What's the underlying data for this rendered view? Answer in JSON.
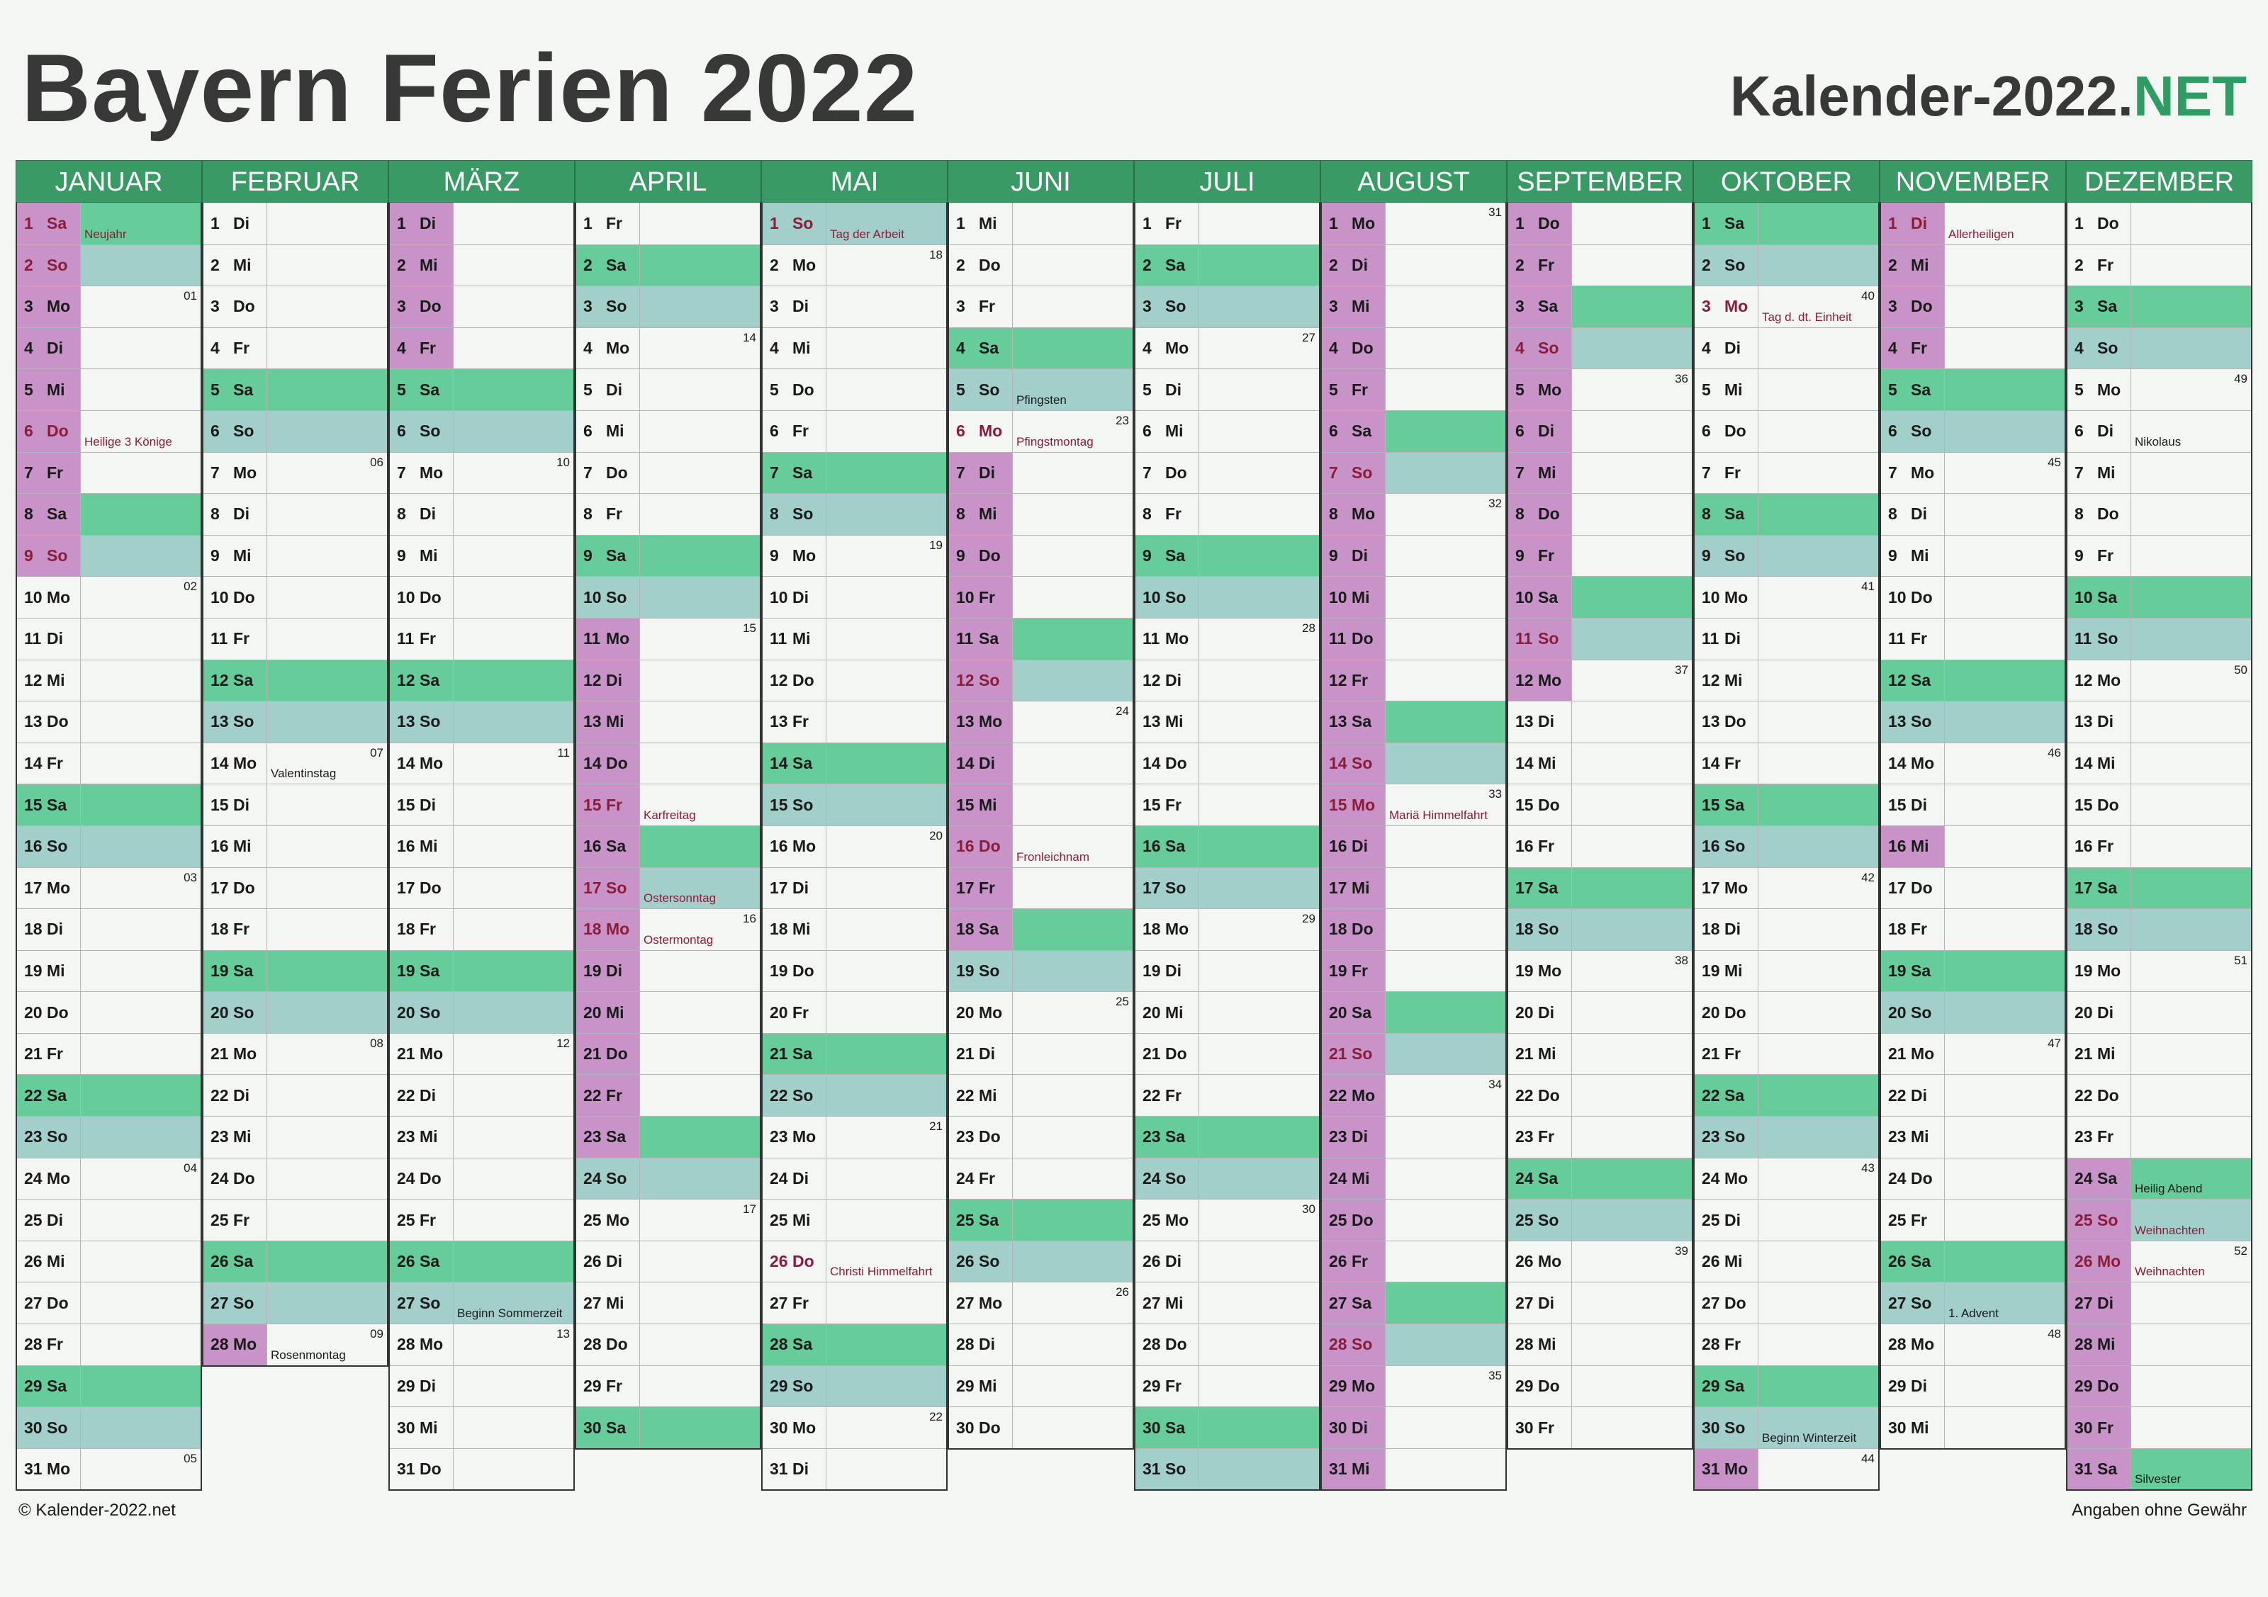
{
  "title": "Bayern Ferien 2022",
  "brand": {
    "main": "Kalender-2022.",
    "accent": ".NET",
    "accent_text": "NET"
  },
  "footer": {
    "copyright": "© Kalender-2022.net",
    "disclaimer": "Angaben ohne Gewähr"
  },
  "colors": {
    "header": "#3a9a66",
    "saturday": "#66cc99",
    "sunday": "#a3cfcb",
    "ferien": "#c894c8",
    "holiday_text": "#8b1c3b"
  },
  "months": [
    {
      "name": "JANUAR",
      "days": 31,
      "start": 6,
      "ferien": [
        1,
        2,
        3,
        4,
        5,
        6,
        7,
        8,
        9
      ],
      "holidays": {
        "1": "Neujahr",
        "6": "Heilige 3 Könige"
      }
    },
    {
      "name": "FEBRUAR",
      "days": 28,
      "start": 2,
      "ferien": [
        28
      ],
      "holidays": {
        "14": "Valentinstag",
        "28": "Rosenmontag"
      }
    },
    {
      "name": "MÄRZ",
      "days": 31,
      "start": 2,
      "ferien": [
        1,
        2,
        3,
        4
      ],
      "holidays": {
        "27": "Beginn Sommerzeit"
      }
    },
    {
      "name": "APRIL",
      "days": 30,
      "start": 5,
      "ferien": [
        11,
        12,
        13,
        14,
        15,
        16,
        17,
        18,
        19,
        20,
        21,
        22,
        23
      ],
      "holidays": {
        "15": "Karfreitag",
        "17": "Ostersonntag",
        "18": "Ostermontag"
      }
    },
    {
      "name": "MAI",
      "days": 31,
      "start": 0,
      "ferien": [],
      "holidays": {
        "1": "Tag der Arbeit",
        "26": "Christi Himmelfahrt"
      }
    },
    {
      "name": "JUNI",
      "days": 30,
      "start": 3,
      "ferien": [
        7,
        8,
        9,
        10,
        11,
        12,
        13,
        14,
        15,
        16,
        17,
        18
      ],
      "holidays": {
        "5": "Pfingsten",
        "6": "Pfingstmontag",
        "16": "Fronleichnam"
      }
    },
    {
      "name": "JULI",
      "days": 31,
      "start": 5,
      "ferien": [],
      "holidays": {}
    },
    {
      "name": "AUGUST",
      "days": 31,
      "start": 1,
      "ferien": [
        1,
        2,
        3,
        4,
        5,
        6,
        7,
        8,
        9,
        10,
        11,
        12,
        13,
        14,
        15,
        16,
        17,
        18,
        19,
        20,
        21,
        22,
        23,
        24,
        25,
        26,
        27,
        28,
        29,
        30,
        31
      ],
      "holidays": {
        "15": "Mariä Himmelfahrt"
      }
    },
    {
      "name": "SEPTEMBER",
      "days": 30,
      "start": 4,
      "ferien": [
        1,
        2,
        3,
        4,
        5,
        6,
        7,
        8,
        9,
        10,
        11,
        12
      ],
      "holidays": {}
    },
    {
      "name": "OKTOBER",
      "days": 31,
      "start": 6,
      "ferien": [
        31
      ],
      "holidays": {
        "3": "Tag d. dt. Einheit",
        "30": "Beginn Winterzeit"
      }
    },
    {
      "name": "NOVEMBER",
      "days": 30,
      "start": 2,
      "ferien": [
        1,
        2,
        3,
        4,
        16
      ],
      "holidays": {
        "1": "Allerheiligen",
        "27": "1. Advent"
      }
    },
    {
      "name": "DEZEMBER",
      "days": 31,
      "start": 4,
      "ferien": [
        24,
        25,
        26,
        27,
        28,
        29,
        30,
        31
      ],
      "holidays": {
        "6": "Nikolaus",
        "24": "Heilig Abend",
        "25": "Weihnachten",
        "26": "Weihnachten",
        "31": "Silvester"
      }
    }
  ],
  "weekdays": [
    "So",
    "Mo",
    "Di",
    "Mi",
    "Do",
    "Fr",
    "Sa"
  ],
  "red_dates": {
    "1": [
      1,
      6
    ],
    "4": [
      15,
      17,
      18
    ],
    "5": [
      1,
      26
    ],
    "6": [
      6,
      16
    ],
    "8": [
      15
    ],
    "10": [
      3
    ],
    "11": [
      1
    ],
    "12": [
      25,
      26
    ]
  }
}
